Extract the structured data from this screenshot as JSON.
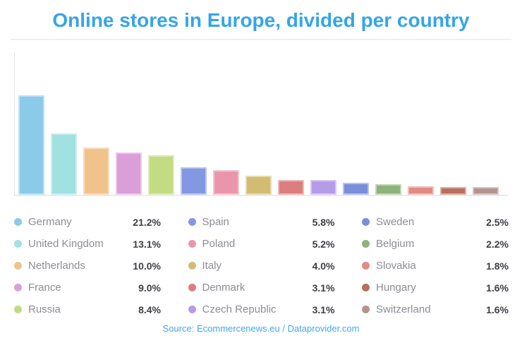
{
  "header": {
    "title": "Online stores in Europe, divided per country"
  },
  "footer": {
    "source": "Source: Ecommercenews.eu / Dataprovider.com"
  },
  "chart_data": {
    "type": "bar",
    "title": "Online stores in Europe, divided per country",
    "categories": [
      "Germany",
      "United Kingdom",
      "Netherlands",
      "France",
      "Russia",
      "Spain",
      "Poland",
      "Italy",
      "Denmark",
      "Czech Republic",
      "Sweden",
      "Belgium",
      "Slovakia",
      "Hungary",
      "Switzerland"
    ],
    "values": [
      21.2,
      13.1,
      10.0,
      9.0,
      8.4,
      5.8,
      5.2,
      4.0,
      3.1,
      3.1,
      2.5,
      2.2,
      1.8,
      1.6,
      1.6
    ],
    "value_labels": [
      "21.2%",
      "13.1%",
      "10.0%",
      "9.0%",
      "8.4%",
      "5.8%",
      "5.2%",
      "4.0%",
      "3.1%",
      "3.1%",
      "2.5%",
      "2.2%",
      "1.8%",
      "1.6%",
      "1.6%"
    ],
    "bar_colors": [
      "#8ccaea",
      "#a0e1e1",
      "#f1c38b",
      "#da9ed8",
      "#c3db83",
      "#8497e2",
      "#eb95ac",
      "#d2bc72",
      "#dc7e7e",
      "#b59ce8",
      "#7b8edc",
      "#8eb27b",
      "#e08b84",
      "#b96f5b",
      "#b39490"
    ],
    "unit": "%",
    "xlabel": "",
    "ylabel": "",
    "ylim": [
      0,
      31
    ],
    "grid": false,
    "x_tick_labels": "none",
    "legend": {
      "position": "bottom",
      "columns": 3,
      "order": "column-major",
      "rows_per_column": 5
    }
  },
  "style_colors": {
    "title_blue": "#35a5e8",
    "source_blue": "#43a8e8",
    "axis_gray": "#e6e6ec",
    "divider_gray": "#efefef",
    "legend_label_gray": "#8c8c96",
    "legend_value_dark": "#3e3e46",
    "background": "#ffffff"
  }
}
